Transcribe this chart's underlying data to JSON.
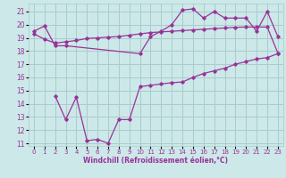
{
  "xlabel": "Windchill (Refroidissement éolien,°C)",
  "bg_color": "#cce8e8",
  "grid_color": "#aacccc",
  "line_color": "#993399",
  "x_ticks": [
    0,
    1,
    2,
    3,
    4,
    5,
    6,
    7,
    8,
    9,
    10,
    11,
    12,
    13,
    14,
    15,
    16,
    17,
    18,
    19,
    20,
    21,
    22,
    23
  ],
  "y_ticks": [
    11,
    12,
    13,
    14,
    15,
    16,
    17,
    18,
    19,
    20,
    21
  ],
  "ylim": [
    10.8,
    21.6
  ],
  "xlim": [
    -0.5,
    23.5
  ],
  "series": {
    "line1_x": [
      0,
      1,
      2,
      3,
      10,
      11,
      12,
      13,
      14,
      15,
      16,
      17,
      18,
      19,
      20,
      21,
      22,
      23
    ],
    "line1_y": [
      19.5,
      19.9,
      18.4,
      18.4,
      17.8,
      19.1,
      19.5,
      20.0,
      21.1,
      21.2,
      20.5,
      21.0,
      20.5,
      20.5,
      20.5,
      19.5,
      21.0,
      19.1
    ],
    "line2_x": [
      0,
      1,
      2,
      3,
      4,
      5,
      6,
      7,
      8,
      9,
      10,
      11,
      12,
      13,
      14,
      15,
      16,
      17,
      18,
      19,
      20,
      21,
      22,
      23
    ],
    "line2_y": [
      19.3,
      18.9,
      18.6,
      18.7,
      18.8,
      18.95,
      19.0,
      19.05,
      19.1,
      19.2,
      19.3,
      19.4,
      19.45,
      19.5,
      19.55,
      19.6,
      19.65,
      19.7,
      19.75,
      19.8,
      19.82,
      19.82,
      19.82,
      17.85
    ],
    "line3_x": [
      2,
      3,
      4,
      5,
      6,
      7,
      8,
      9,
      10,
      11,
      12,
      13,
      14,
      15,
      16,
      17,
      18,
      19,
      20,
      21,
      22,
      23
    ],
    "line3_y": [
      14.6,
      12.8,
      14.5,
      11.2,
      11.3,
      11.0,
      12.8,
      12.8,
      15.3,
      15.4,
      15.5,
      15.6,
      15.65,
      16.0,
      16.3,
      16.5,
      16.7,
      17.0,
      17.2,
      17.4,
      17.5,
      17.8
    ]
  }
}
